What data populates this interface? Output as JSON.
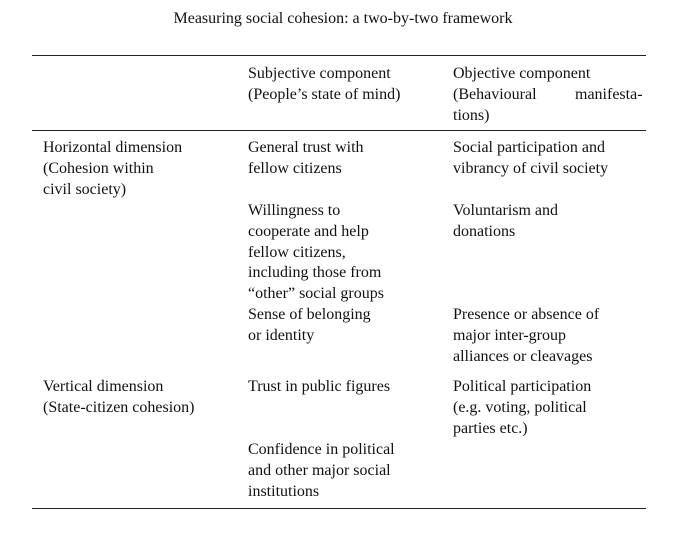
{
  "title": "Measuring social cohesion: a two-by-two framework",
  "columns": [
    {
      "line1": "Subjective component",
      "line2": "(People’s state of mind)"
    },
    {
      "line1": "Objective component",
      "line2a": "(Behavioural",
      "line2b": "manifesta-",
      "line3": "tions)"
    }
  ],
  "rows": [
    {
      "label": "Horizontal dimension\n(Cohesion within\ncivil society)",
      "subjective": [
        "General trust with\nfellow citizens",
        "Willingness to\ncooperate and help\nfellow citizens,\nincluding those from\n“other” social groups",
        "Sense of belonging\nor identity"
      ],
      "objective": [
        "Social participation and\nvibrancy of civil society",
        "Voluntarism and\ndonations",
        "Presence or absence of\nmajor inter-group\nalliances or cleavages"
      ]
    },
    {
      "label": "Vertical dimension\n(State-citizen cohesion)",
      "subjective": [
        "Trust in public figures",
        "Confidence in political\nand other major social\ninstitutions"
      ],
      "objective": [
        "Political participation\n(e.g. voting, political\nparties etc.)"
      ]
    }
  ]
}
